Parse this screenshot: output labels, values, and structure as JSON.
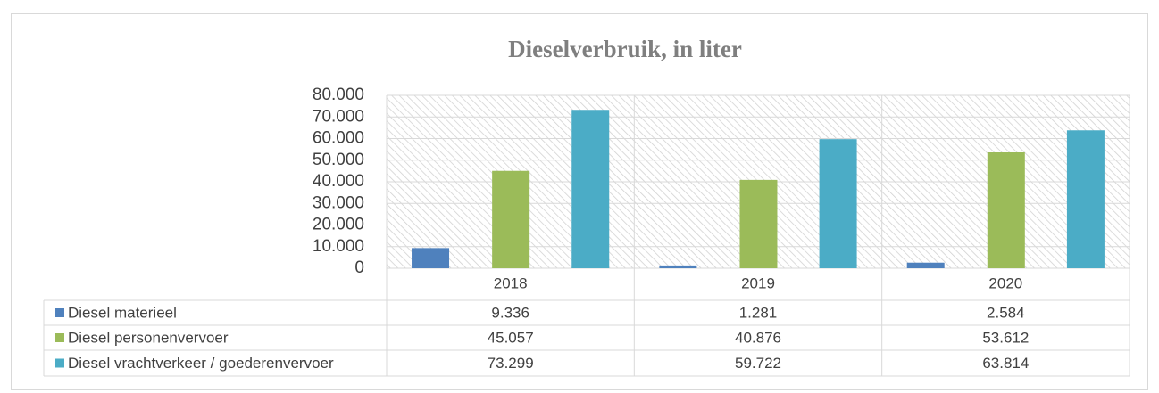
{
  "chart_data": {
    "type": "bar",
    "title": "Dieselverbruik, in liter",
    "categories": [
      "2018",
      "2019",
      "2020"
    ],
    "series": [
      {
        "name": "Diesel materieel",
        "color": "#4f81bd",
        "values": [
          9336,
          1281,
          2584
        ],
        "value_labels": [
          "9.336",
          "1.281",
          "2.584"
        ]
      },
      {
        "name": "Diesel personenvervoer",
        "color": "#9bbb59",
        "values": [
          45057,
          40876,
          53612
        ],
        "value_labels": [
          "45.057",
          "40.876",
          "53.612"
        ]
      },
      {
        "name": "Diesel vrachtverkeer / goederenvervoer",
        "color": "#4bacc6",
        "values": [
          73299,
          59722,
          63814
        ],
        "value_labels": [
          "73.299",
          "59.722",
          "63.814"
        ]
      }
    ],
    "ylim": [
      0,
      80000
    ],
    "yticks": [
      0,
      {
        "value": 10000,
        "label": "10.000"
      },
      {
        "value": 20000,
        "label": "20.000"
      },
      {
        "value": 30000,
        "label": "30.000"
      },
      {
        "value": 40000,
        "label": "40.000"
      },
      {
        "value": 50000,
        "label": "50.000"
      },
      {
        "value": 60000,
        "label": "60.000"
      },
      {
        "value": 70000,
        "label": "70.000"
      },
      {
        "value": 80000,
        "label": "80.000"
      }
    ],
    "grid": true
  }
}
